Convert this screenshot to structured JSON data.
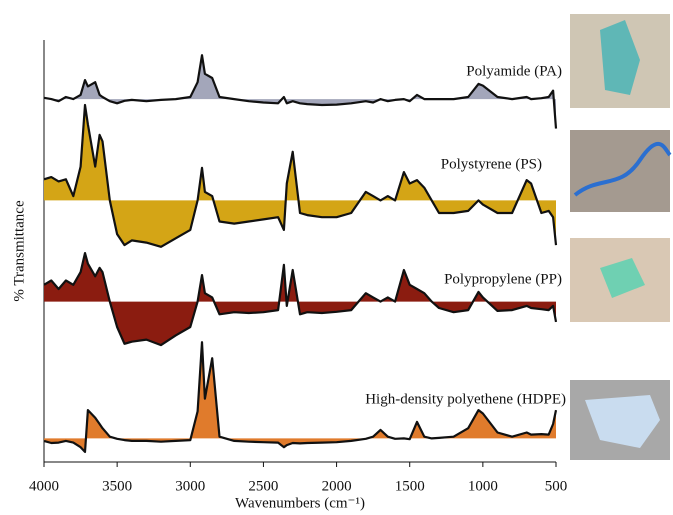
{
  "chart_data": {
    "type": "area",
    "x_label": "Wavenumbers (cm⁻¹)",
    "y_label": "% Transmittance",
    "xlim": [
      4000,
      500
    ],
    "ylim": [
      0,
      100
    ],
    "xticks": [
      4000,
      3500,
      3000,
      2500,
      2000,
      1500,
      1000,
      500
    ],
    "x": [
      4000,
      3950,
      3900,
      3850,
      3800,
      3750,
      3720,
      3700,
      3650,
      3620,
      3600,
      3550,
      3500,
      3450,
      3400,
      3300,
      3200,
      3100,
      3000,
      2950,
      2920,
      2900,
      2850,
      2800,
      2700,
      2600,
      2500,
      2400,
      2360,
      2340,
      2300,
      2250,
      2200,
      2100,
      2000,
      1900,
      1800,
      1750,
      1700,
      1650,
      1600,
      1540,
      1500,
      1450,
      1400,
      1350,
      1300,
      1200,
      1100,
      1030,
      1000,
      900,
      800,
      700,
      670,
      600,
      550,
      520,
      500
    ],
    "series": [
      {
        "name": "Polyamide (PA)",
        "color": "#a3a6ba",
        "values": [
          86.3,
          86,
          85.5,
          86.5,
          86,
          87,
          90.5,
          89,
          90,
          87,
          86.5,
          85.5,
          85,
          85.6,
          85.8,
          85.5,
          85.8,
          86,
          86.5,
          90,
          96.4,
          92,
          91,
          86.5,
          86,
          85.5,
          85.2,
          85,
          86.5,
          85,
          85.5,
          85,
          84.8,
          84.6,
          84.7,
          85,
          85.5,
          85.2,
          86,
          85.5,
          85.8,
          86,
          85.5,
          87,
          86,
          86,
          86,
          86,
          86.5,
          89.6,
          89.2,
          86.5,
          86,
          86.5,
          86,
          86.2,
          86.5,
          88,
          79
        ]
      },
      {
        "name": "Polystyrene (PS)",
        "color": "#d4a516",
        "values": [
          67,
          67.5,
          66.5,
          67,
          63,
          70,
          84.6,
          80,
          70,
          77.5,
          76,
          62,
          54,
          51.4,
          52.5,
          52,
          51,
          53,
          55,
          62,
          69.7,
          64,
          63,
          57,
          56.5,
          57,
          57.5,
          58,
          55,
          66,
          73.5,
          59,
          58.5,
          58,
          58,
          59,
          64,
          63,
          62,
          63,
          62,
          68.7,
          66,
          66.8,
          65,
          62,
          59,
          59,
          59.5,
          62,
          61,
          59,
          59,
          66.8,
          66,
          59,
          59.5,
          58,
          51.4
        ]
      },
      {
        "name": "Polypropylene (PP)",
        "color": "#8b1c10",
        "values": [
          42,
          43,
          41,
          43,
          42,
          45,
          49.5,
          47,
          44,
          46,
          45,
          38,
          32,
          28,
          28.5,
          29,
          27.7,
          30,
          32,
          38,
          44.3,
          40,
          39,
          35,
          35.5,
          35.3,
          35.5,
          36,
          46.7,
          37,
          45.5,
          35,
          35.5,
          35.3,
          35.6,
          36,
          40,
          39,
          38,
          39,
          38,
          45.5,
          42,
          41,
          40,
          38,
          36.5,
          35.5,
          36,
          40.3,
          39,
          35.8,
          36,
          37,
          36.5,
          36.2,
          36,
          37,
          33.2
        ]
      },
      {
        "name": "High-density polyethene (HDPE)",
        "color": "#e07b2c",
        "values": [
          5,
          4.5,
          4.6,
          5,
          4.6,
          3.5,
          2.4,
          12.3,
          10.5,
          9,
          8,
          6,
          5.5,
          5.2,
          5,
          5,
          4.8,
          5,
          5.2,
          12,
          28.4,
          15,
          24.6,
          6,
          5,
          4.8,
          4.7,
          4.6,
          3.5,
          4,
          4.5,
          4.4,
          4.5,
          4.6,
          4.7,
          5,
          5.5,
          6,
          7.6,
          6,
          5.5,
          5.6,
          5.4,
          9.5,
          6,
          5.6,
          5.7,
          6,
          8,
          12.3,
          11.5,
          7,
          6,
          7,
          6.5,
          6.6,
          6.5,
          9,
          12.3
        ]
      }
    ]
  }
}
